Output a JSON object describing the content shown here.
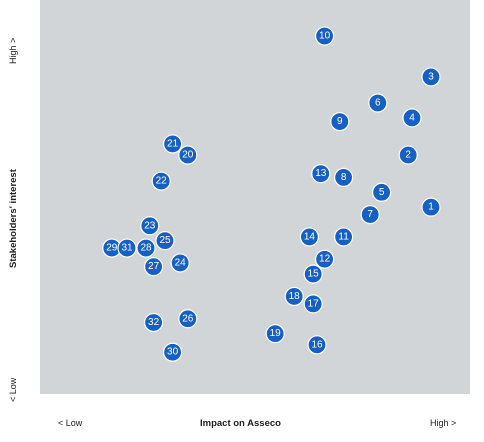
{
  "chart_data": {
    "type": "scatter",
    "xlabel": "Impact on Asseco",
    "ylabel": "Stakeholders' interest",
    "x_low_label": "< Low",
    "x_high_label": "High >",
    "y_low_label": "< Low",
    "y_high_label": "High >",
    "xlim": [
      0,
      100
    ],
    "ylim": [
      0,
      100
    ],
    "grid": false,
    "marker_color": "#1660c4",
    "background_color": "#d1d5d7",
    "points": [
      {
        "label": "1",
        "x": 95,
        "y": 47
      },
      {
        "label": "2",
        "x": 89,
        "y": 61
      },
      {
        "label": "3",
        "x": 95,
        "y": 82
      },
      {
        "label": "4",
        "x": 90,
        "y": 71
      },
      {
        "label": "5",
        "x": 82,
        "y": 51
      },
      {
        "label": "6",
        "x": 81,
        "y": 75
      },
      {
        "label": "7",
        "x": 79,
        "y": 45
      },
      {
        "label": "8",
        "x": 72,
        "y": 55
      },
      {
        "label": "9",
        "x": 71,
        "y": 70
      },
      {
        "label": "10",
        "x": 67,
        "y": 93
      },
      {
        "label": "11",
        "x": 72,
        "y": 39
      },
      {
        "label": "12",
        "x": 67,
        "y": 33
      },
      {
        "label": "13",
        "x": 66,
        "y": 56
      },
      {
        "label": "14",
        "x": 63,
        "y": 39
      },
      {
        "label": "15",
        "x": 64,
        "y": 29
      },
      {
        "label": "16",
        "x": 65,
        "y": 10
      },
      {
        "label": "17",
        "x": 64,
        "y": 21
      },
      {
        "label": "18",
        "x": 59,
        "y": 23
      },
      {
        "label": "19",
        "x": 54,
        "y": 13
      },
      {
        "label": "20",
        "x": 31,
        "y": 61
      },
      {
        "label": "21",
        "x": 27,
        "y": 64
      },
      {
        "label": "22",
        "x": 24,
        "y": 54
      },
      {
        "label": "23",
        "x": 21,
        "y": 42
      },
      {
        "label": "24",
        "x": 29,
        "y": 32
      },
      {
        "label": "25",
        "x": 25,
        "y": 38
      },
      {
        "label": "26",
        "x": 31,
        "y": 17
      },
      {
        "label": "27",
        "x": 22,
        "y": 31
      },
      {
        "label": "28",
        "x": 20,
        "y": 36
      },
      {
        "label": "29",
        "x": 11,
        "y": 36
      },
      {
        "label": "30",
        "x": 27,
        "y": 8
      },
      {
        "label": "31",
        "x": 15,
        "y": 36
      },
      {
        "label": "32",
        "x": 22,
        "y": 16
      }
    ]
  }
}
